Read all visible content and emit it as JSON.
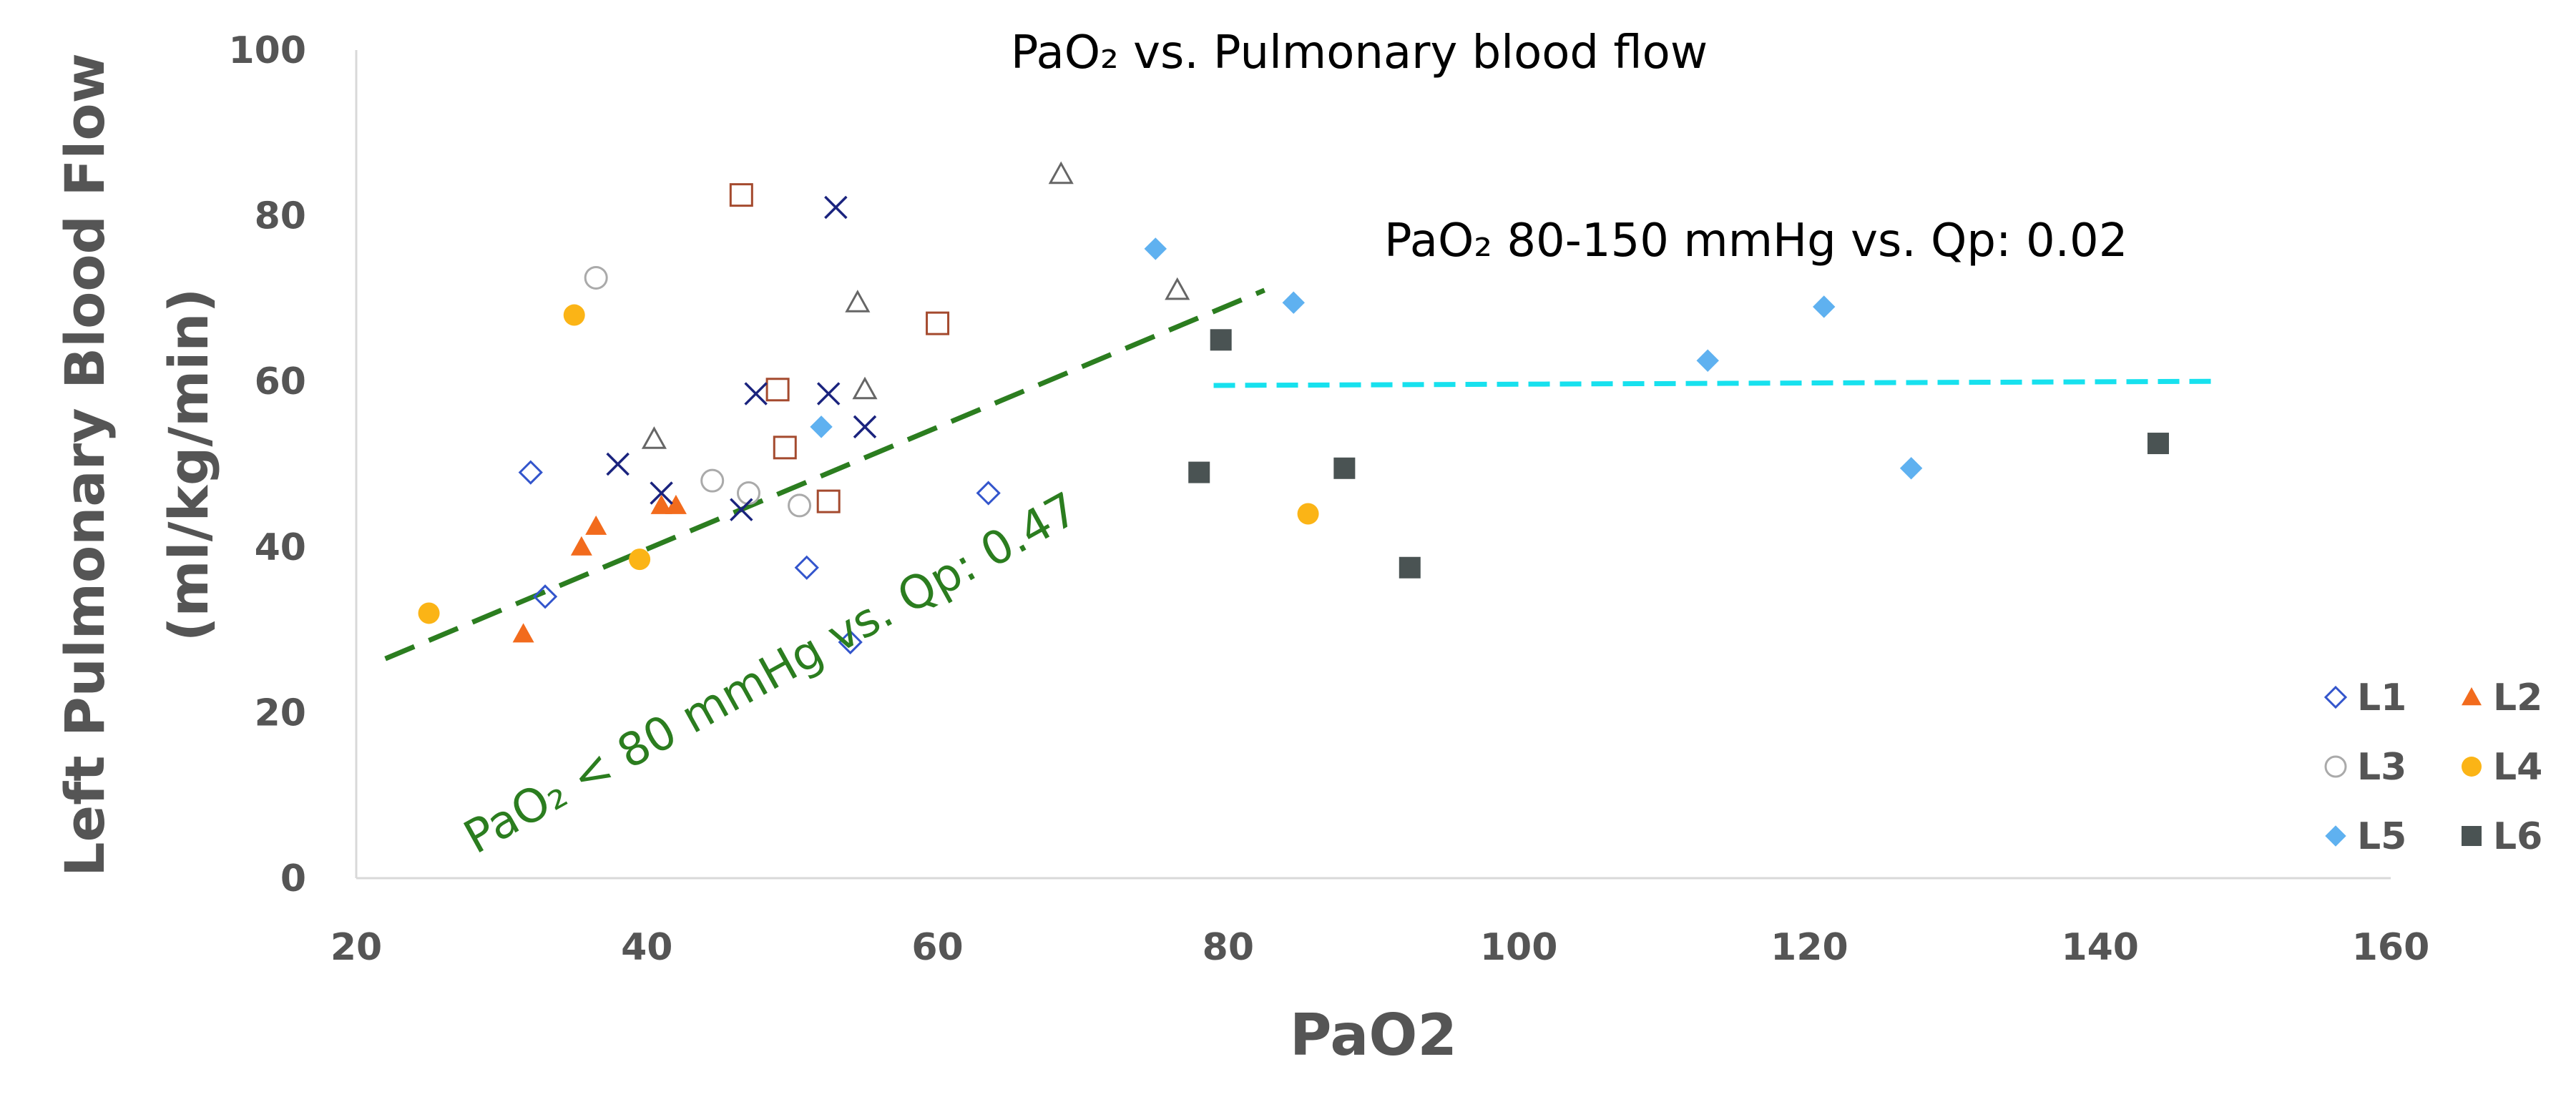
{
  "chart_data": {
    "type": "scatter",
    "title": "PaO₂ vs. Pulmonary blood flow",
    "xlabel": "PaO2",
    "ylabel_line1": "Left Pulmonary Blood Flow",
    "ylabel_line2": "(ml/kg/min)",
    "xlim": [
      20,
      160
    ],
    "ylim": [
      0,
      100
    ],
    "xticks": [
      "20",
      "40",
      "60",
      "80",
      "100",
      "120",
      "140",
      "160"
    ],
    "yticks": [
      "0",
      "20",
      "40",
      "60",
      "80",
      "100"
    ],
    "grid": false,
    "legend_position": "bottom-right",
    "series": [
      {
        "name": "L1",
        "marker": "diamond-open",
        "color": "#3355cc",
        "points": [
          [
            32,
            49
          ],
          [
            33,
            34
          ],
          [
            51,
            37.5
          ],
          [
            54,
            28.5
          ],
          [
            63.5,
            46.5
          ]
        ]
      },
      {
        "name": "L2",
        "marker": "triangle-filled",
        "color": "#f26b1d",
        "points": [
          [
            31.5,
            29.5
          ],
          [
            35.5,
            40
          ],
          [
            36.5,
            42.5
          ],
          [
            41,
            45
          ],
          [
            42,
            45
          ]
        ]
      },
      {
        "name": "L3",
        "marker": "circle-open",
        "color": "#aaaaaa",
        "points": [
          [
            36.5,
            72.5
          ],
          [
            44.5,
            48
          ],
          [
            47,
            46.5
          ],
          [
            50.5,
            45
          ]
        ]
      },
      {
        "name": "L4",
        "marker": "circle-filled",
        "color": "#fbb416",
        "points": [
          [
            25,
            32
          ],
          [
            35,
            68
          ],
          [
            39.5,
            38.5
          ],
          [
            85.5,
            44
          ]
        ]
      },
      {
        "name": "L5",
        "marker": "diamond-filled",
        "color": "#5fb1f0",
        "points": [
          [
            52,
            54.5
          ],
          [
            75,
            76
          ],
          [
            84.5,
            69.5
          ],
          [
            113,
            62.5
          ],
          [
            121,
            69
          ],
          [
            127,
            49.5
          ]
        ]
      },
      {
        "name": "L6",
        "marker": "square-filled",
        "color": "#4a5353",
        "points": [
          [
            78,
            49
          ],
          [
            79.5,
            65
          ],
          [
            88,
            49.5
          ],
          [
            92.5,
            37.5
          ],
          [
            144,
            52.5
          ]
        ]
      },
      {
        "name": "",
        "marker": "square-open",
        "color": "#a44a2e",
        "points": [
          [
            46.5,
            82.5
          ],
          [
            49,
            59
          ],
          [
            49.5,
            52
          ],
          [
            52.5,
            45.5
          ],
          [
            60,
            67
          ]
        ]
      },
      {
        "name": "",
        "marker": "triangle-open",
        "color": "#666666",
        "points": [
          [
            40.5,
            53
          ],
          [
            54.5,
            69.5
          ],
          [
            55,
            59
          ],
          [
            68.5,
            85
          ],
          [
            76.5,
            71
          ]
        ]
      },
      {
        "name": "",
        "marker": "x",
        "color": "#1a237e",
        "points": [
          [
            38,
            50
          ],
          [
            41,
            46.5
          ],
          [
            46.5,
            44.5
          ],
          [
            47.5,
            58.5
          ],
          [
            52.5,
            58.5
          ],
          [
            53,
            81
          ],
          [
            55,
            54.5
          ]
        ]
      }
    ],
    "trendlines": [
      {
        "label": "PaO₂ < 80 mmHg vs. Qp: 0.47",
        "color": "#2b7d1f",
        "from": [
          22,
          26.5
        ],
        "to": [
          82.5,
          71
        ]
      },
      {
        "label": "PaO₂ 80-150 mmHg vs. Qp: 0.02",
        "color": "#17e1ee",
        "from": [
          79,
          59.5
        ],
        "to": [
          148,
          60
        ]
      }
    ],
    "legend": [
      {
        "name": "L1",
        "marker": "diamond-open",
        "color": "#3355cc"
      },
      {
        "name": "L2",
        "marker": "triangle-filled",
        "color": "#f26b1d"
      },
      {
        "name": "L3",
        "marker": "circle-open",
        "color": "#aaaaaa"
      },
      {
        "name": "L4",
        "marker": "circle-filled",
        "color": "#fbb416"
      },
      {
        "name": "L5",
        "marker": "diamond-filled",
        "color": "#5fb1f0"
      },
      {
        "name": "L6",
        "marker": "square-filled",
        "color": "#4a5353"
      }
    ]
  }
}
